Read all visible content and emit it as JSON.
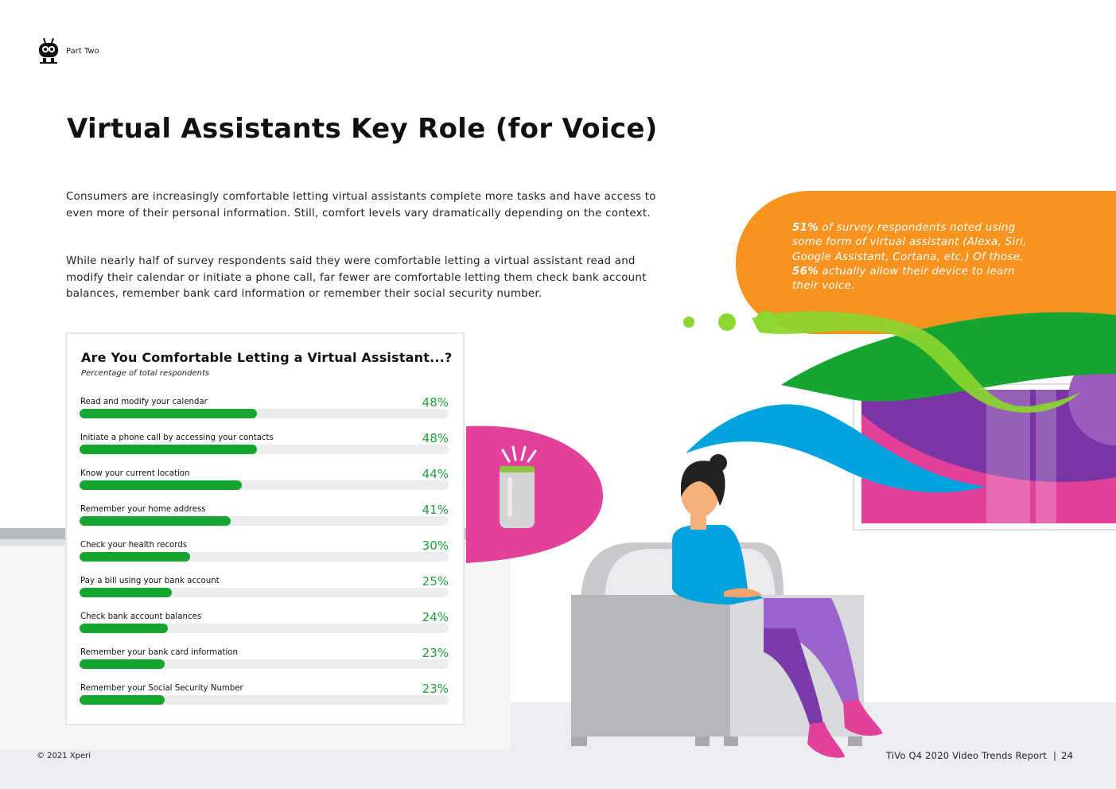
{
  "header": {
    "part_label": "Part Two"
  },
  "page_title": "Virtual Assistants Key Role (for Voice)",
  "intro": [
    "Consumers are increasingly comfortable letting virtual assistants complete more tasks and have access to even more of their personal information. Still, comfort levels vary dramatically depending on the context.",
    "While nearly half of survey respondents said they were comfortable letting a virtual assistant read and modify their calendar or initiate a phone call, far fewer are comfortable letting them check bank account balances, remember bank card information or remember their social security number."
  ],
  "callout": {
    "stat1": "51%",
    "text1": " of survey respondents noted using some form of virtual assistant (Alexa, Siri, Google Assistant, Cortana, etc.) Of those, ",
    "stat2": "56%",
    "text2": " actually allow their device to learn their voice."
  },
  "colors": {
    "accent_green": "#16a52f",
    "orange": "#f7931e",
    "pink": "#e2409a",
    "purple": "#7b3aa8",
    "blue": "#00a3dd",
    "track": "#ececef"
  },
  "chart_data": {
    "type": "bar",
    "orientation": "horizontal",
    "title": "Are You Comfortable Letting a Virtual Assistant...?",
    "subtitle": "Percentage of total respondents",
    "categories": [
      "Read and modify your calendar",
      "Initiate a phone call by accessing your contacts",
      "Know your current location",
      "Remember your home address",
      "Check your health records",
      "Pay a bill using your bank account",
      "Check bank account balances",
      "Remember your bank card information",
      "Remember your Social Security Number"
    ],
    "values": [
      48,
      48,
      44,
      41,
      30,
      25,
      24,
      23,
      23
    ],
    "value_labels": [
      "48%",
      "48%",
      "44%",
      "41%",
      "30%",
      "25%",
      "24%",
      "23%",
      "23%"
    ],
    "xlim": [
      0,
      100
    ],
    "grid": false,
    "legend": "none"
  },
  "footer": {
    "copyright": "© 2021 Xperi",
    "report": "TiVo Q4 2020 Video Trends Report",
    "separator": "|",
    "page_number": "24"
  }
}
